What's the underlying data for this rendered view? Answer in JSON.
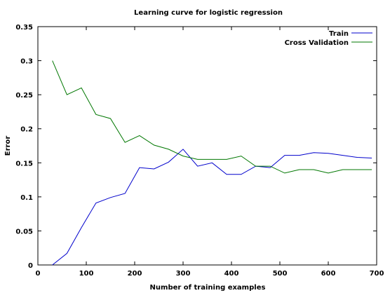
{
  "chart_data": {
    "type": "line",
    "title": "Learning curve for logistic regression",
    "xlabel": "Number of training examples",
    "ylabel": "Error",
    "xlim": [
      0,
      700
    ],
    "ylim": [
      0,
      0.35
    ],
    "xticks": [
      "0",
      "100",
      "200",
      "300",
      "400",
      "500",
      "600",
      "700"
    ],
    "yticks": [
      "0",
      "0.05",
      "0.1",
      "0.15",
      "0.2",
      "0.25",
      "0.3",
      "0.35"
    ],
    "grid": false,
    "legend_position": "top-right",
    "x": [
      30,
      60,
      90,
      120,
      150,
      180,
      210,
      240,
      270,
      300,
      330,
      360,
      390,
      420,
      450,
      480,
      510,
      540,
      570,
      600,
      630,
      660,
      690
    ],
    "series": [
      {
        "name": "Train",
        "color": "#0000cc",
        "values": [
          0.0,
          0.017,
          0.055,
          0.091,
          0.099,
          0.105,
          0.143,
          0.141,
          0.151,
          0.17,
          0.145,
          0.15,
          0.133,
          0.133,
          0.145,
          0.143,
          0.161,
          0.161,
          0.165,
          0.164,
          0.161,
          0.158,
          0.157
        ]
      },
      {
        "name": "Cross Validation",
        "color": "#007700",
        "values": [
          0.3,
          0.25,
          0.26,
          0.221,
          0.215,
          0.18,
          0.19,
          0.176,
          0.17,
          0.16,
          0.155,
          0.155,
          0.155,
          0.16,
          0.145,
          0.145,
          0.135,
          0.14,
          0.14,
          0.135,
          0.14,
          0.14,
          0.14
        ]
      }
    ]
  }
}
